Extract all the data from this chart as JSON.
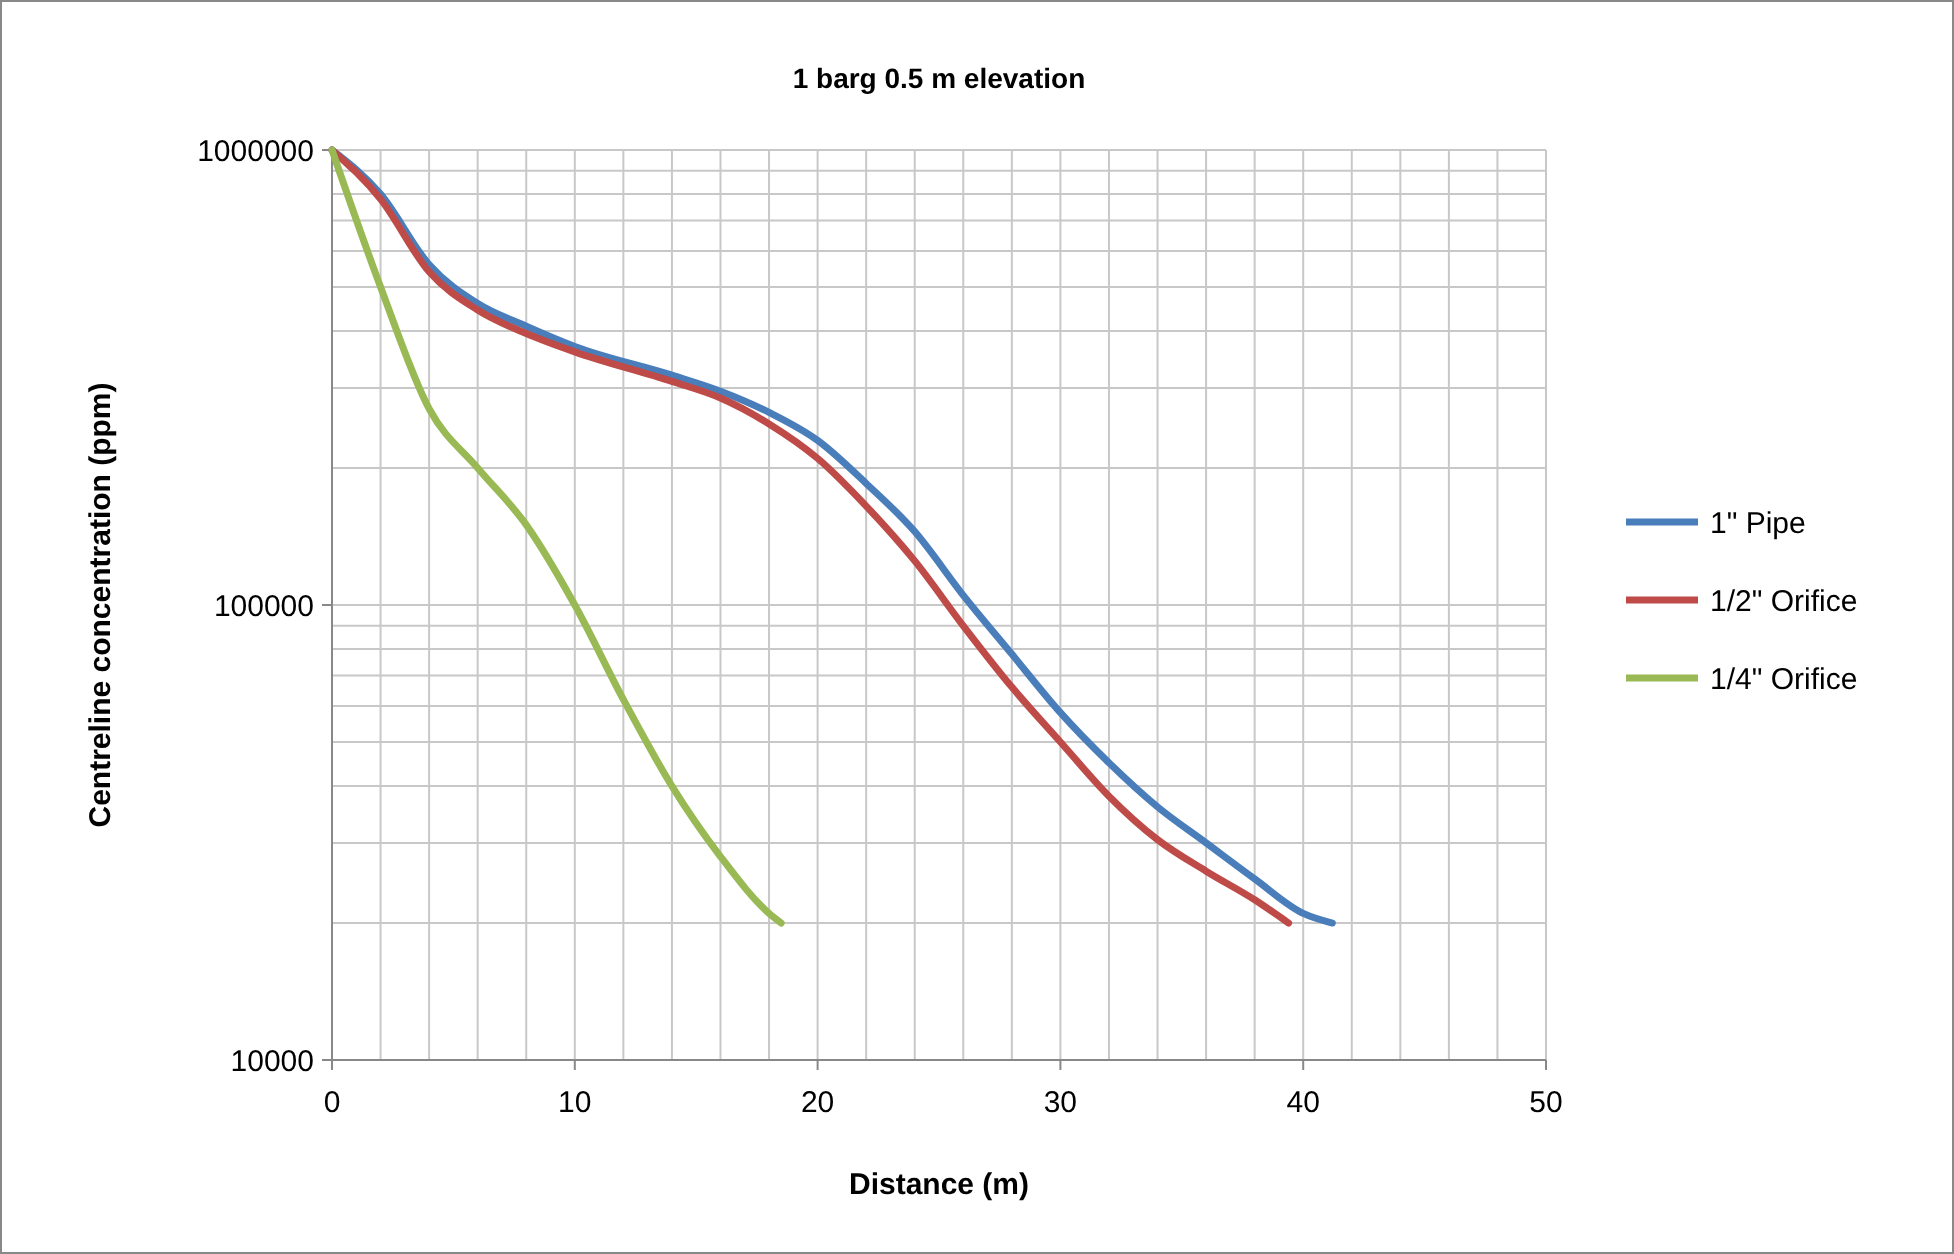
{
  "chart_data": {
    "type": "line",
    "title": "1 barg 0.5 m elevation",
    "xlabel": "Distance (m)",
    "ylabel": "Centreline concentration (ppm)",
    "log": "y",
    "grid": true,
    "legend": "right",
    "line_style": "solid",
    "xlim": [
      0,
      50
    ],
    "ylim": [
      10000,
      1000000
    ],
    "xticks": [
      0,
      {
        "value": 2,
        "label": null
      },
      {
        "value": 4,
        "label": null
      },
      {
        "value": 6,
        "label": null
      },
      {
        "value": 8,
        "label": null
      },
      10,
      {
        "value": 12,
        "label": null
      },
      {
        "value": 14,
        "label": null
      },
      {
        "value": 16,
        "label": null
      },
      {
        "value": 18,
        "label": null
      },
      20,
      {
        "value": 22,
        "label": null
      },
      {
        "value": 24,
        "label": null
      },
      {
        "value": 26,
        "label": null
      },
      {
        "value": 28,
        "label": null
      },
      30,
      {
        "value": 32,
        "label": null
      },
      {
        "value": 34,
        "label": null
      },
      {
        "value": 36,
        "label": null
      },
      {
        "value": 38,
        "label": null
      },
      40,
      {
        "value": 42,
        "label": null
      },
      {
        "value": 44,
        "label": null
      },
      {
        "value": 46,
        "label": null
      },
      {
        "value": 48,
        "label": null
      },
      50
    ],
    "yticks": [
      10000,
      {
        "value": 20000,
        "label": null
      },
      {
        "value": 30000,
        "label": null
      },
      {
        "value": 40000,
        "label": null
      },
      {
        "value": 50000,
        "label": null
      },
      {
        "value": 60000,
        "label": null
      },
      {
        "value": 70000,
        "label": null
      },
      {
        "value": 80000,
        "label": null
      },
      {
        "value": 90000,
        "label": null
      },
      100000,
      {
        "value": 200000,
        "label": null
      },
      {
        "value": 300000,
        "label": null
      },
      {
        "value": 400000,
        "label": null
      },
      {
        "value": 500000,
        "label": null
      },
      {
        "value": 600000,
        "label": null
      },
      {
        "value": 700000,
        "label": null
      },
      {
        "value": 800000,
        "label": null
      },
      {
        "value": 900000,
        "label": null
      },
      1000000
    ],
    "series": [
      {
        "name": "1\" Pipe",
        "color": "#4a7ebb",
        "x": [
          0,
          2,
          4,
          6,
          8,
          10,
          14,
          16,
          18,
          20,
          22,
          24,
          26,
          28,
          30,
          32,
          34,
          36,
          38,
          40,
          41.2
        ],
        "values": [
          1000000,
          800000,
          560000,
          460000,
          410000,
          370000,
          320000,
          295000,
          265000,
          230000,
          185000,
          145000,
          105000,
          78000,
          58000,
          45000,
          36000,
          30000,
          25000,
          21000,
          20000
        ]
      },
      {
        "name": "1/2\" Orifice",
        "color": "#be4b48",
        "x": [
          0,
          2,
          4,
          6,
          8,
          10,
          14,
          16,
          18,
          20,
          22,
          24,
          26,
          28,
          30,
          32,
          34,
          36,
          38,
          39.4
        ],
        "values": [
          1000000,
          780000,
          540000,
          445000,
          395000,
          360000,
          310000,
          285000,
          250000,
          210000,
          165000,
          125000,
          90000,
          66000,
          50000,
          38000,
          30500,
          26000,
          22500,
          20000
        ]
      },
      {
        "name": "1/4\" Orifice",
        "color": "#98b954",
        "x": [
          0,
          2,
          4,
          6,
          8,
          10,
          12,
          14,
          16,
          18,
          18.5
        ],
        "values": [
          1000000,
          500000,
          270000,
          200000,
          150000,
          100000,
          62000,
          40000,
          28000,
          21000,
          20000
        ]
      }
    ]
  }
}
